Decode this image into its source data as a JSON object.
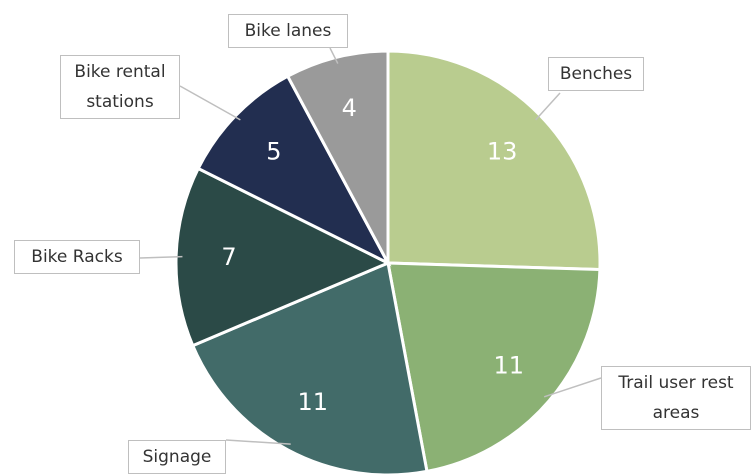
{
  "chart_data": {
    "type": "pie",
    "categories": [
      "Benches",
      "Trail user rest areas",
      "Signage",
      "Bike Racks",
      "Bike rental stations",
      "Bike lanes"
    ],
    "values": [
      13,
      11,
      11,
      7,
      5,
      4
    ],
    "colors": [
      "#b9cc8f",
      "#8bb174",
      "#426b69",
      "#2b4a47",
      "#222e50",
      "#9a9a9a"
    ]
  }
}
